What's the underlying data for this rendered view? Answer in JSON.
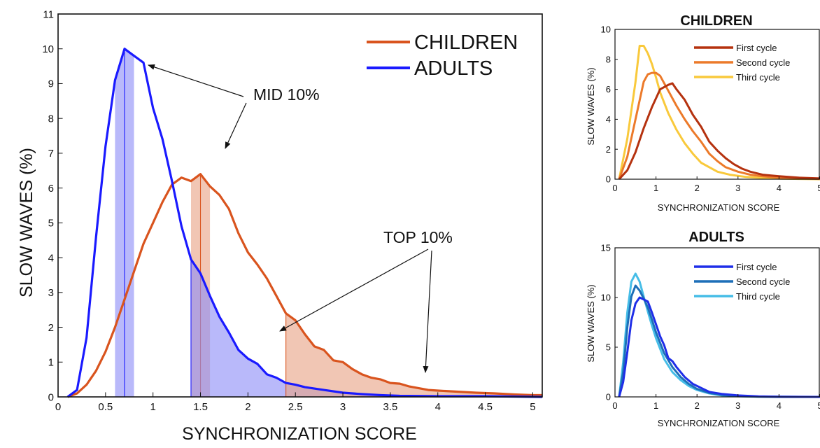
{
  "colors": {
    "children": "#d9541e",
    "adults": "#1a1aff",
    "children_fill": "#e9a386",
    "adults_fill": "#8e8ef7",
    "children_first": "#b5320f",
    "children_second": "#ec7a2a",
    "children_third": "#f9c93b",
    "adults_first": "#1f2ee8",
    "adults_second": "#1d6fb8",
    "adults_third": "#46bde7"
  },
  "annotations": {
    "mid": "MID 10%",
    "top": "TOP 10%"
  },
  "chart_data": [
    {
      "type": "line",
      "xlabel": "SYNCHRONIZATION SCORE",
      "ylabel": "SLOW WAVES (%)",
      "xlim": [
        0,
        5.1
      ],
      "ylim": [
        0,
        11
      ],
      "xticks": [
        0,
        0.5,
        1,
        1.5,
        2,
        2.5,
        3,
        3.5,
        4,
        4.5,
        5
      ],
      "xtick_labels": [
        "0",
        "0.5",
        "1",
        "1.5",
        "2",
        "2.5",
        "3",
        "3.5",
        "4",
        "4.5",
        "5"
      ],
      "yticks": [
        0,
        1,
        2,
        3,
        4,
        5,
        6,
        7,
        8,
        9,
        10,
        11
      ],
      "ytick_labels": [
        "0",
        "1",
        "2",
        "3",
        "4",
        "5",
        "6",
        "7",
        "8",
        "9",
        "10",
        "11"
      ],
      "legend_position": "top-right",
      "series": [
        {
          "name": "CHILDREN",
          "x": [
            0.1,
            0.2,
            0.3,
            0.4,
            0.5,
            0.6,
            0.7,
            0.8,
            0.9,
            1.0,
            1.1,
            1.2,
            1.3,
            1.4,
            1.5,
            1.6,
            1.7,
            1.8,
            1.9,
            2.0,
            2.1,
            2.2,
            2.3,
            2.4,
            2.5,
            2.6,
            2.7,
            2.8,
            2.9,
            3.0,
            3.1,
            3.2,
            3.3,
            3.4,
            3.5,
            3.6,
            3.7,
            3.8,
            3.9,
            4.0,
            4.2,
            4.4,
            4.6,
            4.8,
            5.0,
            5.1
          ],
          "y": [
            0.0,
            0.1,
            0.35,
            0.75,
            1.3,
            2.0,
            2.8,
            3.6,
            4.4,
            5.0,
            5.6,
            6.1,
            6.3,
            6.2,
            6.4,
            6.05,
            5.8,
            5.4,
            4.7,
            4.15,
            3.8,
            3.4,
            2.9,
            2.4,
            2.2,
            1.8,
            1.45,
            1.35,
            1.05,
            1.0,
            0.8,
            0.65,
            0.55,
            0.5,
            0.4,
            0.38,
            0.3,
            0.25,
            0.2,
            0.18,
            0.15,
            0.12,
            0.1,
            0.07,
            0.05,
            0.05
          ]
        },
        {
          "name": "ADULTS",
          "x": [
            0.1,
            0.2,
            0.3,
            0.4,
            0.5,
            0.6,
            0.7,
            0.8,
            0.9,
            1.0,
            1.1,
            1.2,
            1.3,
            1.4,
            1.5,
            1.6,
            1.7,
            1.8,
            1.9,
            2.0,
            2.1,
            2.2,
            2.3,
            2.4,
            2.5,
            2.6,
            2.8,
            3.0,
            3.2,
            3.4,
            3.6,
            4.0,
            4.5,
            5.1
          ],
          "y": [
            0.0,
            0.2,
            1.7,
            4.6,
            7.2,
            9.1,
            10.0,
            9.8,
            9.6,
            8.3,
            7.4,
            6.2,
            4.9,
            3.95,
            3.55,
            2.9,
            2.3,
            1.85,
            1.35,
            1.1,
            0.95,
            0.65,
            0.55,
            0.4,
            0.35,
            0.28,
            0.2,
            0.12,
            0.08,
            0.05,
            0.03,
            0.02,
            0.02,
            0.0
          ]
        }
      ],
      "shaded_regions": [
        {
          "series": "ADULTS",
          "label": "MID 10%",
          "x_range": [
            0.6,
            0.8
          ],
          "marker_x": 0.7
        },
        {
          "series": "CHILDREN",
          "label": "MID 10%",
          "x_range": [
            1.4,
            1.6
          ],
          "marker_x": 1.5
        },
        {
          "series": "ADULTS",
          "label": "TOP 10%",
          "x_range": [
            1.4,
            5.1
          ]
        },
        {
          "series": "CHILDREN",
          "label": "TOP 10%",
          "x_range": [
            2.4,
            5.1
          ]
        }
      ]
    },
    {
      "type": "line",
      "title": "CHILDREN",
      "xlabel": "SYNCHRONIZATION SCORE",
      "ylabel": "SLOW WAVES (%)",
      "xlim": [
        0,
        5
      ],
      "ylim": [
        0,
        10
      ],
      "xticks": [
        0,
        1,
        2,
        3,
        4,
        5
      ],
      "xtick_labels": [
        "0",
        "1",
        "2",
        "3",
        "4",
        "5"
      ],
      "yticks": [
        0,
        2,
        4,
        6,
        8,
        10
      ],
      "ytick_labels": [
        "0",
        "2",
        "4",
        "6",
        "8",
        "10"
      ],
      "legend_position": "top-right",
      "series": [
        {
          "name": "First cycle",
          "x": [
            0.1,
            0.3,
            0.5,
            0.7,
            0.9,
            1.1,
            1.3,
            1.4,
            1.5,
            1.7,
            1.9,
            2.1,
            2.3,
            2.5,
            2.7,
            2.9,
            3.1,
            3.3,
            3.6,
            4.0,
            4.5,
            5.0
          ],
          "y": [
            0.0,
            0.6,
            1.8,
            3.4,
            4.8,
            6.0,
            6.3,
            6.4,
            6.0,
            5.3,
            4.3,
            3.5,
            2.5,
            1.9,
            1.4,
            1.0,
            0.7,
            0.5,
            0.3,
            0.2,
            0.1,
            0.05
          ]
        },
        {
          "name": "Second cycle",
          "x": [
            0.1,
            0.3,
            0.5,
            0.7,
            0.8,
            0.9,
            1.0,
            1.1,
            1.3,
            1.5,
            1.7,
            1.9,
            2.1,
            2.3,
            2.5,
            2.7,
            3.0,
            3.3,
            3.6,
            4.0,
            4.5,
            5.0
          ],
          "y": [
            0.0,
            1.5,
            4.0,
            6.5,
            7.0,
            7.1,
            7.1,
            6.9,
            5.9,
            4.9,
            4.0,
            3.2,
            2.5,
            1.7,
            1.2,
            0.8,
            0.5,
            0.3,
            0.2,
            0.1,
            0.05,
            0.02
          ]
        },
        {
          "name": "Third cycle",
          "x": [
            0.1,
            0.3,
            0.5,
            0.6,
            0.7,
            0.8,
            0.9,
            1.0,
            1.1,
            1.3,
            1.5,
            1.7,
            1.9,
            2.1,
            2.3,
            2.5,
            2.8,
            3.2,
            3.6,
            4.0,
            4.5,
            5.0
          ],
          "y": [
            0.0,
            2.7,
            6.5,
            8.9,
            8.9,
            8.4,
            7.7,
            6.8,
            5.8,
            4.4,
            3.3,
            2.4,
            1.7,
            1.1,
            0.8,
            0.5,
            0.3,
            0.15,
            0.08,
            0.04,
            0.02,
            0.0
          ]
        }
      ]
    },
    {
      "type": "line",
      "title": "ADULTS",
      "xlabel": "SYNCHRONIZATION SCORE",
      "ylabel": "SLOW WAVES (%)",
      "xlim": [
        0,
        5
      ],
      "ylim": [
        0,
        15
      ],
      "xticks": [
        0,
        1,
        2,
        3,
        4,
        5
      ],
      "xtick_labels": [
        "0",
        "1",
        "2",
        "3",
        "4",
        "5"
      ],
      "yticks": [
        0,
        5,
        10,
        15
      ],
      "ytick_labels": [
        "0",
        "5",
        "10",
        "15"
      ],
      "legend_position": "top-right",
      "series": [
        {
          "name": "First cycle",
          "x": [
            0.1,
            0.2,
            0.3,
            0.4,
            0.5,
            0.6,
            0.7,
            0.8,
            0.9,
            1.0,
            1.1,
            1.2,
            1.3,
            1.4,
            1.5,
            1.7,
            1.9,
            2.1,
            2.3,
            2.6,
            3.0,
            3.5,
            4.0,
            5.0
          ],
          "y": [
            0.0,
            1.5,
            4.5,
            7.7,
            9.4,
            10.0,
            9.8,
            9.6,
            8.5,
            7.3,
            6.1,
            5.2,
            3.9,
            3.6,
            3.0,
            2.0,
            1.3,
            0.9,
            0.5,
            0.3,
            0.15,
            0.05,
            0.02,
            0.0
          ]
        },
        {
          "name": "Second cycle",
          "x": [
            0.1,
            0.2,
            0.3,
            0.4,
            0.5,
            0.6,
            0.7,
            0.8,
            0.9,
            1.0,
            1.2,
            1.4,
            1.6,
            1.8,
            2.0,
            2.3,
            2.6,
            3.0,
            3.5,
            4.0,
            5.0
          ],
          "y": [
            0.0,
            2.5,
            7.0,
            10.1,
            11.2,
            10.7,
            9.9,
            9.0,
            7.8,
            6.5,
            4.4,
            3.0,
            2.0,
            1.3,
            0.8,
            0.4,
            0.2,
            0.08,
            0.03,
            0.01,
            0.0
          ]
        },
        {
          "name": "Third cycle",
          "x": [
            0.1,
            0.2,
            0.3,
            0.4,
            0.5,
            0.6,
            0.7,
            0.8,
            0.9,
            1.0,
            1.2,
            1.4,
            1.6,
            1.8,
            2.0,
            2.3,
            2.6,
            3.0,
            3.5,
            4.0,
            5.0
          ],
          "y": [
            0.0,
            3.5,
            8.5,
            11.6,
            12.4,
            11.6,
            10.1,
            8.6,
            7.2,
            5.9,
            3.8,
            2.5,
            1.7,
            1.1,
            0.7,
            0.35,
            0.15,
            0.06,
            0.02,
            0.01,
            0.0
          ]
        }
      ]
    }
  ]
}
